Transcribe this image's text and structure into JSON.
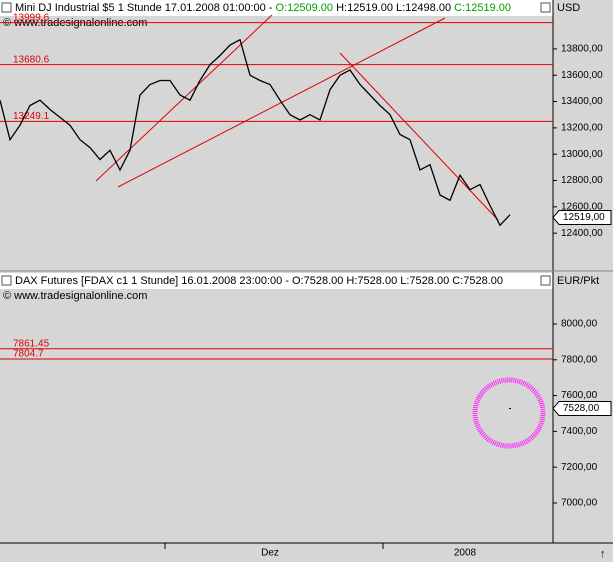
{
  "chart_data": [
    {
      "type": "line",
      "header": [
        "Mini DJ Industrial $5 1 Stunde  17.01.2008 01:00:00 - ",
        "O:12509.00",
        " H:12519.00",
        " L:12498.00",
        " C:12519.00"
      ],
      "copyright": "© www.tradesignalonline.com",
      "unit": "USD",
      "ylim": [
        12120,
        14035
      ],
      "yticks": [
        {
          "value": 12400,
          "label": "12400,00"
        },
        {
          "value": 12600,
          "label": "12600,00"
        },
        {
          "value": 12800,
          "label": "12800,00"
        },
        {
          "value": 13000,
          "label": "13000,00"
        },
        {
          "value": 13200,
          "label": "13200,00"
        },
        {
          "value": 13400,
          "label": "13400,00"
        },
        {
          "value": 13600,
          "label": "13600,00"
        },
        {
          "value": 13800,
          "label": "13800,00"
        }
      ],
      "levels": [
        13999.6,
        13680.6,
        13249.1
      ],
      "color": "#000000",
      "values": [
        13410,
        13110,
        13220,
        13370,
        13410,
        13340,
        13280,
        13220,
        13110,
        13050,
        12960,
        13030,
        12880,
        13030,
        13450,
        13530,
        13560,
        13560,
        13450,
        13410,
        13560,
        13680,
        13750,
        13830,
        13870,
        13600,
        13560,
        13530,
        13410,
        13300,
        13260,
        13300,
        13260,
        13490,
        13600,
        13640,
        13530,
        13450,
        13370,
        13300,
        13150,
        13110,
        12880,
        12920,
        12690,
        12650,
        12840,
        12730,
        12770,
        12610,
        12460,
        12540
      ],
      "last": 12519,
      "last_label": "12519,00"
    },
    {
      "type": "line",
      "header": [
        "DAX Futures [FDAX c1  1 Stunde] 16.01.2008 23:00:00 - O:7528.00 H:7528.00 L:7528.00 C:7528.00"
      ],
      "unit": "EUR/Pkt",
      "ylim": [
        6793,
        8190
      ],
      "yticks": [
        {
          "value": 7000,
          "label": "7000,00"
        },
        {
          "value": 7200,
          "label": "7200,00"
        },
        {
          "value": 7400,
          "label": "7400,00"
        },
        {
          "value": 7600,
          "label": "7600,00"
        },
        {
          "value": 7800,
          "label": "7800,00"
        },
        {
          "value": 8000,
          "label": "8000,00"
        }
      ],
      "levels": [
        7861.45,
        7804.7
      ],
      "color": "#000000",
      "values": [
        7528
      ],
      "last": 7528,
      "last_label": "7528,00"
    }
  ],
  "x_labels": [
    "Dez",
    "2008"
  ]
}
